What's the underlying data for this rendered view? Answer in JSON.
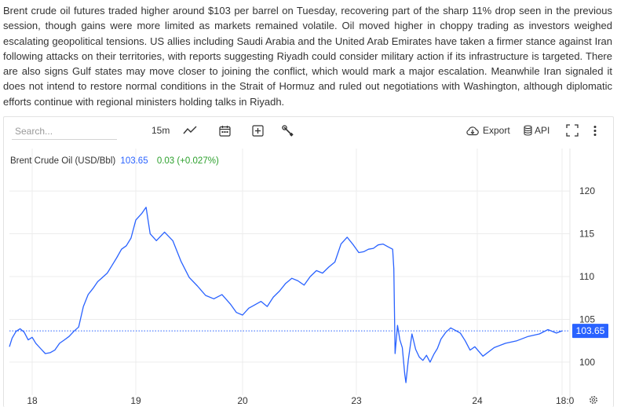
{
  "article": {
    "text": "Brent crude oil futures traded higher around $103 per barrel on Tuesday, recovering part of the sharp 11% drop seen in the previous session, though gains were more limited as markets remained volatile. Oil moved higher in choppy trading as investors weighed escalating geopolitical tensions. US allies including Saudi Arabia and the United Arab Emirates have taken a firmer stance against Iran following attacks on their territories, with reports suggesting Riyadh could consider military action if its infrastructure is targeted. There are also signs Gulf states may move closer to joining the conflict, which would mark a major escalation. Meanwhile Iran signaled it does not intend to restore normal conditions in the Strait of Hormuz and ruled out negotiations with Washington, although diplomatic efforts continue with regional ministers holding talks in Riyadh."
  },
  "toolbar": {
    "search_placeholder": "Search...",
    "interval": "15m",
    "export_label": "Export",
    "api_label": "API",
    "icons": [
      "line-chart-icon",
      "calendar-icon",
      "add-indicator-icon",
      "wrench-icon",
      "cloud-download-icon",
      "database-icon",
      "fullscreen-icon",
      "more-vertical-icon",
      "gear-icon"
    ]
  },
  "legend": {
    "name": "Brent Crude Oil (USD/Bbl)",
    "price": "103.65",
    "change": "0.03 (+0.027%)"
  },
  "colors": {
    "line": "#2962ff",
    "change": "#2ca02c",
    "price_label_bg": "#2962ff",
    "grid": "#ececec"
  },
  "chart_data": {
    "type": "line",
    "title": "Brent Crude Oil (USD/Bbl)",
    "x_ticks": [
      "18",
      "19",
      "20",
      "23",
      "24",
      "18:0"
    ],
    "y_ticks": [
      100,
      105,
      110,
      115,
      120
    ],
    "ylim": [
      96.5,
      123.5
    ],
    "last_price": 103.65,
    "last_price_label": "103.65",
    "grid": true,
    "series": [
      {
        "name": "Brent Crude Oil (USD/Bbl)",
        "points": [
          [
            0,
            101.8
          ],
          [
            0.02,
            102.8
          ],
          [
            0.05,
            103.6
          ],
          [
            0.08,
            103.9
          ],
          [
            0.11,
            103.5
          ],
          [
            0.14,
            102.6
          ],
          [
            0.17,
            102.9
          ],
          [
            0.2,
            102.2
          ],
          [
            0.24,
            101.6
          ],
          [
            0.28,
            101.0
          ],
          [
            0.32,
            101.1
          ],
          [
            0.36,
            101.4
          ],
          [
            0.4,
            102.2
          ],
          [
            0.44,
            102.6
          ],
          [
            0.48,
            103.0
          ],
          [
            0.52,
            103.6
          ],
          [
            0.56,
            104.1
          ],
          [
            0.6,
            106.5
          ],
          [
            0.64,
            107.9
          ],
          [
            0.68,
            108.6
          ],
          [
            0.72,
            109.4
          ],
          [
            0.76,
            109.9
          ],
          [
            0.8,
            110.4
          ],
          [
            0.84,
            111.3
          ],
          [
            0.88,
            112.2
          ],
          [
            0.92,
            113.2
          ],
          [
            0.96,
            113.6
          ],
          [
            1.0,
            114.5
          ],
          [
            1.04,
            116.6
          ],
          [
            1.07,
            117.4
          ],
          [
            1.09,
            118.1
          ],
          [
            1.11,
            115.0
          ],
          [
            1.14,
            114.2
          ],
          [
            1.18,
            115.2
          ],
          [
            1.22,
            114.2
          ],
          [
            1.26,
            111.8
          ],
          [
            1.3,
            109.9
          ],
          [
            1.34,
            108.9
          ],
          [
            1.38,
            107.8
          ],
          [
            1.42,
            107.4
          ],
          [
            1.46,
            107.9
          ],
          [
            1.5,
            106.8
          ],
          [
            1.53,
            105.8
          ],
          [
            1.56,
            105.5
          ],
          [
            1.6,
            106.3
          ],
          [
            1.64,
            106.7
          ],
          [
            1.68,
            107.1
          ],
          [
            1.72,
            106.5
          ],
          [
            1.76,
            107.6
          ],
          [
            1.8,
            108.3
          ],
          [
            1.84,
            109.2
          ],
          [
            1.88,
            109.8
          ],
          [
            1.92,
            109.5
          ],
          [
            1.96,
            109.0
          ],
          [
            2.0,
            110.0
          ],
          [
            2.04,
            110.7
          ],
          [
            2.08,
            110.4
          ],
          [
            2.12,
            111.1
          ],
          [
            2.16,
            111.7
          ],
          [
            2.2,
            113.8
          ],
          [
            2.24,
            114.6
          ],
          [
            2.28,
            113.7
          ],
          [
            2.32,
            112.8
          ],
          [
            2.36,
            112.9
          ],
          [
            2.4,
            113.2
          ],
          [
            2.44,
            113.3
          ],
          [
            2.48,
            113.7
          ],
          [
            2.52,
            113.8
          ],
          [
            2.56,
            113.5
          ],
          [
            2.6,
            113.2
          ],
          [
            2.61,
            110.9
          ],
          [
            2.62,
            101.0
          ],
          [
            2.64,
            104.3
          ],
          [
            2.66,
            102.6
          ],
          [
            2.68,
            101.7
          ],
          [
            2.7,
            98.6
          ],
          [
            2.71,
            97.6
          ],
          [
            2.73,
            100.3
          ],
          [
            2.76,
            103.3
          ],
          [
            2.79,
            101.5
          ],
          [
            2.82,
            100.6
          ],
          [
            2.85,
            100.2
          ],
          [
            2.88,
            100.8
          ],
          [
            2.91,
            100.0
          ],
          [
            2.94,
            100.9
          ],
          [
            2.97,
            101.6
          ],
          [
            3.0,
            102.7
          ],
          [
            3.04,
            103.5
          ],
          [
            3.08,
            104.0
          ],
          [
            3.12,
            103.7
          ],
          [
            3.16,
            103.4
          ],
          [
            3.2,
            102.5
          ],
          [
            3.24,
            101.4
          ],
          [
            3.28,
            101.8
          ],
          [
            3.32,
            100.7
          ],
          [
            3.36,
            101.7
          ],
          [
            3.4,
            102.2
          ],
          [
            3.44,
            102.5
          ],
          [
            3.48,
            103.0
          ],
          [
            3.52,
            103.3
          ],
          [
            3.55,
            103.8
          ],
          [
            3.58,
            103.4
          ],
          [
            3.6,
            103.65
          ]
        ]
      }
    ]
  }
}
